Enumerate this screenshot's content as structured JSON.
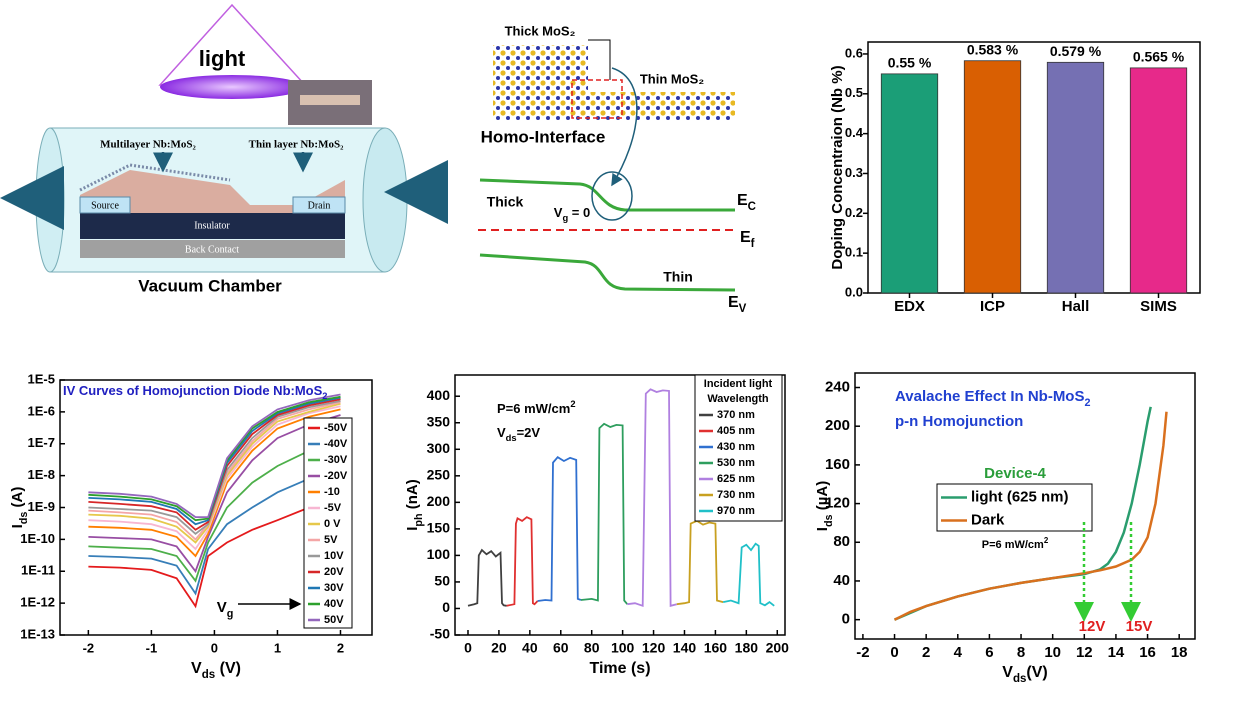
{
  "diagrams": {
    "chamber": {
      "light": "light",
      "multilayer": "Multilayer Nb:MoS₂",
      "thin": "Thin layer Nb:MoS₂",
      "source": "Source",
      "drain": "Drain",
      "insulator": "Insulator",
      "back": "Back Contact",
      "caption": "Vacuum Chamber"
    },
    "interface": {
      "thick_mos2": "Thick MoS₂",
      "thin_mos2": "Thin MoS₂",
      "title": "Homo-Interface",
      "thick": "Thick",
      "vg": {
        "main": "V",
        "sub": "g",
        "rest": " = 0"
      },
      "ec": {
        "main": "E",
        "sub": "C"
      },
      "ef": {
        "main": "E",
        "sub": "f"
      },
      "ev": {
        "main": "E",
        "sub": "V"
      },
      "thin": "Thin"
    }
  },
  "chart_data": [
    {
      "type": "bar",
      "ylabel": "Doping Concentraion (Nb %)",
      "categories": [
        "EDX",
        "ICP",
        "Hall",
        "SIMS"
      ],
      "values": [
        0.55,
        0.583,
        0.579,
        0.565
      ],
      "value_labels": [
        "0.55 %",
        "0.583 %",
        "0.579 %",
        "0.565 %"
      ],
      "colors": [
        "#1b9e77",
        "#d95f02",
        "#7570b3",
        "#e7298a"
      ],
      "ylim": [
        0,
        0.63
      ],
      "yticks": [
        {
          "value": 0,
          "label": "0.0"
        },
        0.1,
        0.2,
        0.3,
        0.4,
        0.5,
        0.6
      ]
    },
    {
      "type": "line",
      "log_y": true,
      "title": {
        "main": "IV Curves of Homojunction Diode Nb:MoS",
        "sub": "2"
      },
      "xlabel": {
        "main": "V",
        "sub": "ds",
        "rest": " (V)"
      },
      "ylabel": {
        "main": "I",
        "sub": "ds",
        "rest": " (A)"
      },
      "annotation": {
        "main": "V",
        "sub": "g"
      },
      "xlim": [
        -2.45,
        2.5
      ],
      "xticks": [
        -2,
        -1,
        0,
        1,
        2
      ],
      "ylim": [
        1e-13,
        1e-05
      ],
      "yticks": [
        {
          "value": 1e-13,
          "label": "1E-13"
        },
        {
          "value": 1e-12,
          "label": "1E-12"
        },
        {
          "value": 1e-11,
          "label": "1E-11"
        },
        {
          "value": 1e-10,
          "label": "1E-10"
        },
        {
          "value": 1e-09,
          "label": "1E-9"
        },
        {
          "value": 1e-08,
          "label": "1E-8"
        },
        {
          "value": 1e-07,
          "label": "1E-7"
        },
        {
          "value": 1e-06,
          "label": "1E-6"
        },
        {
          "value": 1e-05,
          "label": "1E-5"
        }
      ],
      "x": [
        -2,
        -1.5,
        -1,
        -0.6,
        -0.3,
        -0.1,
        0.2,
        0.6,
        1,
        1.5,
        2
      ],
      "series": [
        {
          "name": "-50V",
          "color": "#e41a1c",
          "values": [
            1.4e-11,
            1.3e-11,
            1.1e-11,
            6e-12,
            8e-13,
            3e-11,
            8e-11,
            2e-10,
            4e-10,
            1e-09,
            2e-09
          ]
        },
        {
          "name": "-40V",
          "color": "#377eb8",
          "values": [
            3e-11,
            2.8e-11,
            2.5e-11,
            1.5e-11,
            2e-12,
            5e-11,
            3e-10,
            1e-09,
            3e-09,
            8e-09,
            1.5e-08
          ]
        },
        {
          "name": "-30V",
          "color": "#4daf4a",
          "values": [
            6e-11,
            5.5e-11,
            5e-11,
            3e-11,
            5e-12,
            8e-11,
            1e-09,
            6e-09,
            2e-08,
            6e-08,
            1.2e-07
          ]
        },
        {
          "name": "-20V",
          "color": "#984ea3",
          "values": [
            1.2e-10,
            1.1e-10,
            1e-10,
            6e-11,
            1e-11,
            1.2e-10,
            3e-09,
            3e-08,
            1.5e-07,
            4e-07,
            8e-07
          ]
        },
        {
          "name": "-10",
          "color": "#ff7f00",
          "values": [
            2.5e-10,
            2.3e-10,
            2e-10,
            1.2e-10,
            3e-11,
            1.5e-10,
            6e-09,
            6e-08,
            3e-07,
            7e-07,
            1.2e-06
          ]
        },
        {
          "name": "-5V",
          "color": "#f7b6d2",
          "values": [
            4e-10,
            3.6e-10,
            3e-10,
            1.8e-10,
            5e-11,
            2e-10,
            8e-09,
            8e-08,
            4e-07,
            9e-07,
            1.5e-06
          ]
        },
        {
          "name": "0 V",
          "color": "#e6c84a",
          "values": [
            6e-10,
            5.5e-10,
            4.5e-10,
            2.5e-10,
            8e-11,
            2.5e-10,
            1e-08,
            1e-07,
            5e-07,
            1e-06,
            1.8e-06
          ]
        },
        {
          "name": "5V",
          "color": "#f4a6a6",
          "values": [
            8e-10,
            7e-10,
            6e-10,
            3.5e-10,
            1e-10,
            3e-10,
            1.2e-08,
            1.2e-07,
            6e-07,
            1.2e-06,
            2e-06
          ]
        },
        {
          "name": "10V",
          "color": "#999999",
          "values": [
            1e-09,
            9e-10,
            8e-10,
            5e-10,
            1.5e-10,
            3e-10,
            1.5e-08,
            1.5e-07,
            7e-07,
            1.4e-06,
            2.2e-06
          ]
        },
        {
          "name": "20V",
          "color": "#d62728",
          "values": [
            1.5e-09,
            1.3e-09,
            1.1e-09,
            7e-10,
            2e-10,
            3.5e-10,
            2e-08,
            2e-07,
            8e-07,
            1.6e-06,
            2.5e-06
          ]
        },
        {
          "name": "30V",
          "color": "#1f77b4",
          "values": [
            2e-09,
            1.8e-09,
            1.5e-09,
            9e-10,
            3e-10,
            4e-10,
            2.5e-08,
            2.5e-07,
            9e-07,
            1.8e-06,
            2.8e-06
          ]
        },
        {
          "name": "40V",
          "color": "#2ca02c",
          "values": [
            2.5e-09,
            2.2e-09,
            1.8e-09,
            1.1e-09,
            4e-10,
            4.5e-10,
            3e-08,
            3e-07,
            1e-06,
            2e-06,
            3e-06
          ]
        },
        {
          "name": "50V",
          "color": "#9467bd",
          "values": [
            3e-09,
            2.7e-09,
            2.2e-09,
            1.3e-09,
            5e-10,
            5e-10,
            3.5e-08,
            3.5e-07,
            1.2e-06,
            2.3e-06,
            3.5e-06
          ]
        }
      ]
    },
    {
      "type": "line",
      "xlabel": "Time (s)",
      "ylabel": {
        "main": "I",
        "sub": "ph",
        "rest": " (nA)"
      },
      "legend_title": [
        "Incident light",
        "Wavelength"
      ],
      "annotations": [
        {
          "main": "P=6 mW/cm",
          "sup": "2"
        },
        {
          "main": "V",
          "sub": "ds",
          "rest": "=2V"
        }
      ],
      "xlim": [
        -8.4,
        205
      ],
      "xticks": [
        0,
        20,
        40,
        60,
        80,
        100,
        120,
        140,
        160,
        180,
        200
      ],
      "ylim": [
        -50,
        440
      ],
      "yticks": [
        -50,
        0,
        50,
        100,
        150,
        200,
        250,
        300,
        350,
        400
      ],
      "series": [
        {
          "name": "370 nm",
          "color": "#404040",
          "x": [
            0,
            4,
            6,
            7,
            9,
            12,
            15,
            18,
            21,
            22,
            23,
            25
          ],
          "values": [
            5,
            8,
            10,
            100,
            110,
            102,
            108,
            98,
            105,
            10,
            6,
            5
          ]
        },
        {
          "name": "405 nm",
          "color": "#e03030",
          "x": [
            25,
            30,
            31,
            32,
            35,
            38,
            41,
            42,
            43,
            45
          ],
          "values": [
            5,
            8,
            160,
            170,
            165,
            172,
            168,
            10,
            8,
            14
          ]
        },
        {
          "name": "430 nm",
          "color": "#3070d0",
          "x": [
            45,
            50,
            54,
            55,
            58,
            62,
            66,
            70,
            71,
            73
          ],
          "values": [
            14,
            16,
            15,
            275,
            285,
            278,
            284,
            280,
            18,
            16
          ]
        },
        {
          "name": "530 nm",
          "color": "#2e9e5e",
          "x": [
            73,
            80,
            84,
            85,
            88,
            92,
            96,
            100,
            101,
            103
          ],
          "values": [
            16,
            18,
            15,
            340,
            348,
            342,
            346,
            345,
            15,
            8
          ]
        },
        {
          "name": "625 nm",
          "color": "#b080e0",
          "x": [
            103,
            108,
            113,
            115,
            118,
            122,
            126,
            130,
            131,
            135
          ],
          "values": [
            8,
            10,
            5,
            405,
            413,
            408,
            411,
            410,
            5,
            8
          ]
        },
        {
          "name": "730 nm",
          "color": "#c8a020",
          "x": [
            135,
            140,
            143,
            144,
            148,
            152,
            156,
            160,
            161,
            165
          ],
          "values": [
            8,
            10,
            12,
            160,
            165,
            158,
            162,
            160,
            15,
            12
          ]
        },
        {
          "name": "970 nm",
          "color": "#20c0c8",
          "x": [
            165,
            170,
            175,
            177,
            180,
            183,
            186,
            188,
            189,
            192,
            195,
            198
          ],
          "values": [
            12,
            15,
            10,
            115,
            120,
            110,
            122,
            118,
            10,
            6,
            12,
            5
          ]
        }
      ]
    },
    {
      "type": "line",
      "xlabel": {
        "main": "V",
        "sub": "ds",
        "rest": "(V)"
      },
      "ylabel": {
        "main": "I",
        "sub": "ds",
        "rest": " (µA)"
      },
      "title": {
        "main": "Avalache Effect In Nb-MoS",
        "sub": "2"
      },
      "subtitle": "p-n Homojunction",
      "legend_title": "Device-4",
      "annotations": [
        {
          "main": "P=6 mW/cm",
          "sup": "2"
        },
        "12V",
        "15V"
      ],
      "xlim": [
        -2.5,
        19
      ],
      "xticks": [
        -2,
        0,
        2,
        4,
        6,
        8,
        10,
        12,
        14,
        16,
        18
      ],
      "ylim": [
        -20,
        255
      ],
      "yticks": [
        0,
        40,
        80,
        120,
        160,
        200,
        240
      ],
      "series": [
        {
          "name": "light (625 nm)",
          "color": "#2a9d6e",
          "x": [
            0,
            2,
            4,
            6,
            8,
            10,
            12,
            13,
            13.5,
            14,
            14.5,
            15,
            15.5,
            16,
            16.2
          ],
          "values": [
            0,
            14,
            24,
            32,
            38,
            43,
            47,
            52,
            58,
            70,
            90,
            120,
            160,
            205,
            220
          ]
        },
        {
          "name": "Dark",
          "color": "#d9701e",
          "x": [
            0,
            1,
            2,
            4,
            6,
            8,
            10,
            12,
            13,
            14,
            15,
            15.5,
            16,
            16.5,
            17,
            17.2
          ],
          "values": [
            0,
            8,
            14,
            24,
            32,
            38,
            43,
            48,
            51,
            55,
            62,
            70,
            85,
            120,
            180,
            215
          ]
        }
      ]
    }
  ]
}
